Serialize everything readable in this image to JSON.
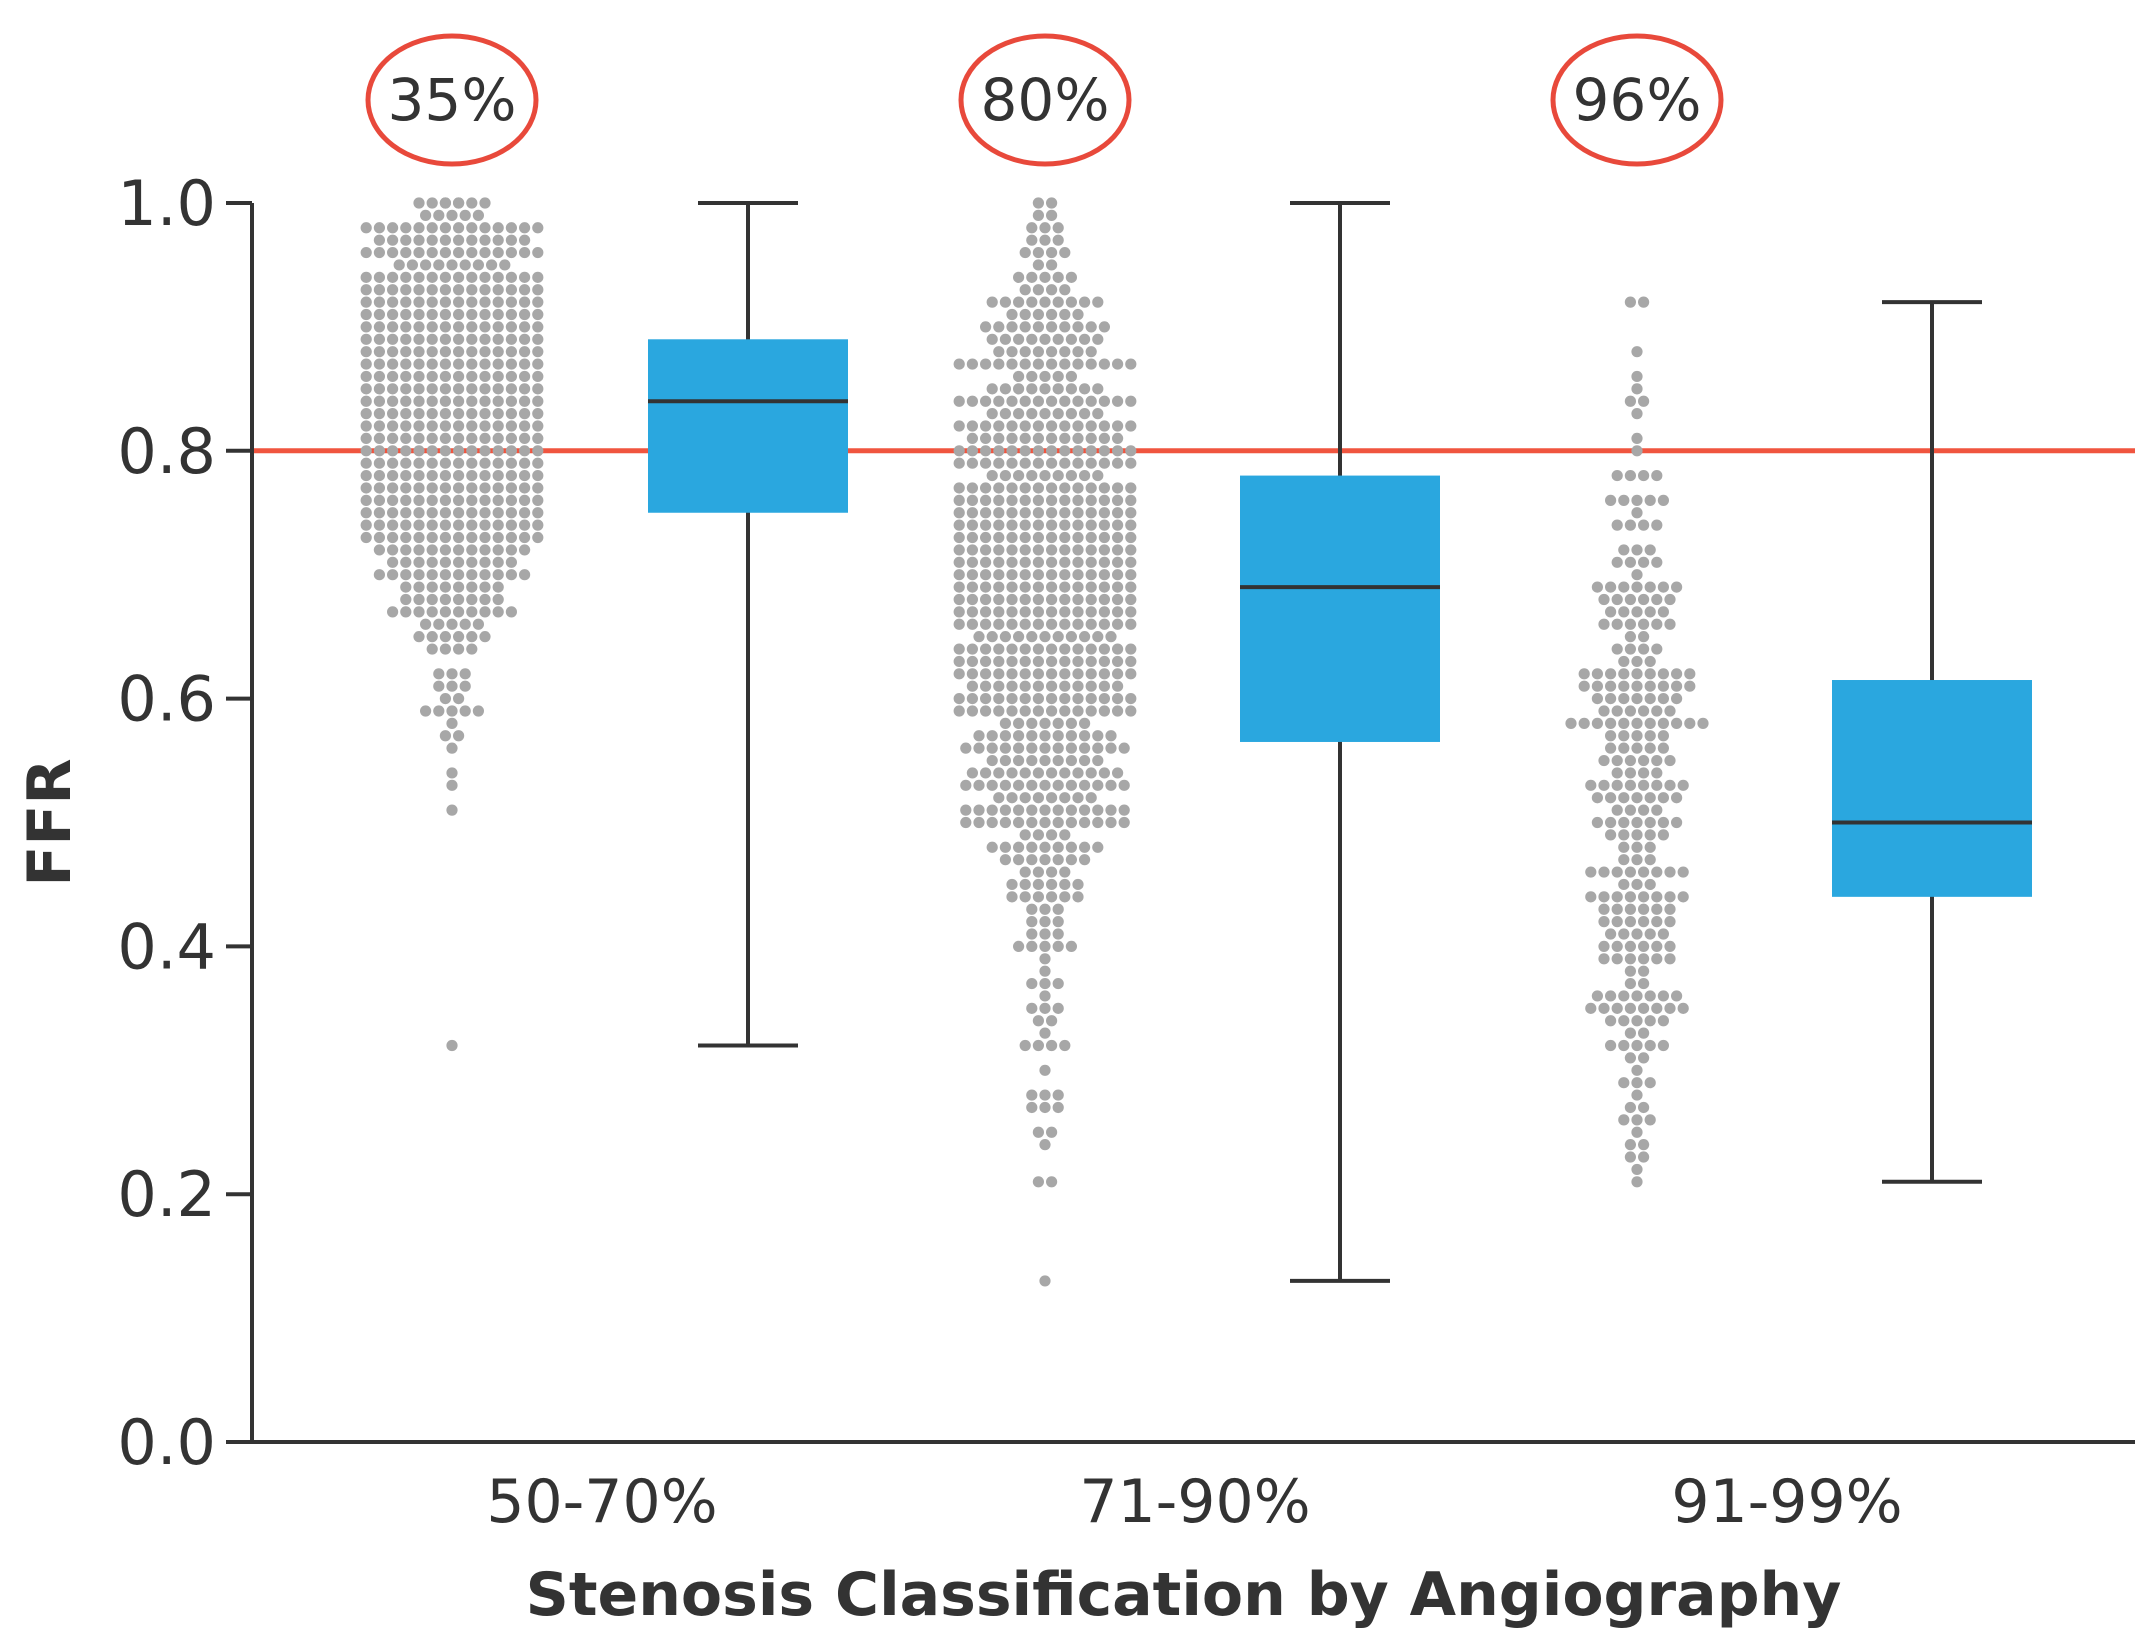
{
  "chart_data": {
    "type": "box-with-dot-strip",
    "xlabel": "Stenosis Classification by Angiography",
    "ylabel": "FFR",
    "ylim": [
      0.0,
      1.0
    ],
    "yticks": [
      "0.0",
      "0.2",
      "0.4",
      "0.6",
      "0.8",
      "1.0"
    ],
    "reference_line": {
      "y": 0.8,
      "color": "#f0553f"
    },
    "colors": {
      "box": "#2aa7df",
      "dots": "#a7a7a7",
      "axis": "#333333",
      "circle": "#e8493b"
    },
    "categories": [
      "50-70%",
      "71-90%",
      "91-99%"
    ],
    "groups": [
      {
        "category": "50-70%",
        "percent_label": "35%",
        "box": {
          "min": 0.32,
          "q1": 0.75,
          "median": 0.84,
          "q3": 0.89,
          "max": 1.0
        }
      },
      {
        "category": "71-90%",
        "percent_label": "80%",
        "box": {
          "min": 0.13,
          "q1": 0.565,
          "median": 0.69,
          "q3": 0.78,
          "max": 1.0
        }
      },
      {
        "category": "91-99%",
        "percent_label": "96%",
        "box": {
          "min": 0.21,
          "q1": 0.44,
          "median": 0.5,
          "q3": 0.615,
          "max": 0.92
        }
      }
    ]
  }
}
